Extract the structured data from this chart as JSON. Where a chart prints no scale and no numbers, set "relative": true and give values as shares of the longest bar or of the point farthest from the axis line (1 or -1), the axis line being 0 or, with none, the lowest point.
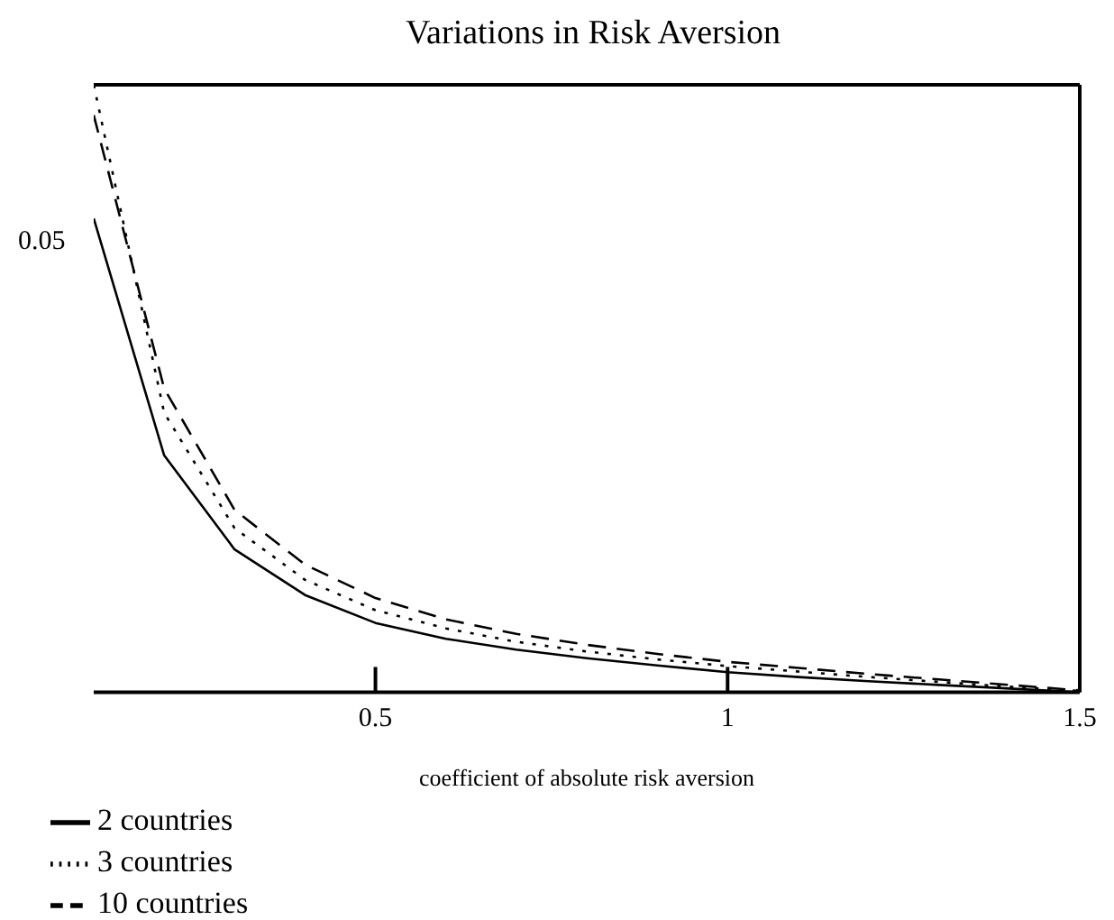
{
  "chart_data": {
    "type": "line",
    "title": "Variations in Risk Aversion",
    "xlabel": "coefficient of absolute risk aversion",
    "relative": true,
    "xlim": [
      0.1,
      1.5
    ],
    "xticks": [
      0.5,
      1,
      1.5
    ],
    "x": [
      0.1,
      0.2,
      0.3,
      0.4,
      0.5,
      0.6,
      0.7,
      0.8,
      0.9,
      1.0,
      1.1,
      1.2,
      1.3,
      1.4,
      1.5
    ],
    "legend": "bottom left",
    "grid": false,
    "annotations": [
      "0.05"
    ],
    "series": [
      {
        "name": "2 countries",
        "color": "#000000",
        "line_style": "solid",
        "values": [
          0.78,
          0.39,
          0.235,
          0.16,
          0.114,
          0.088,
          0.07,
          0.056,
          0.044,
          0.033,
          0.025,
          0.018,
          0.012,
          0.006,
          0
        ]
      },
      {
        "name": "3 countries",
        "color": "#000000",
        "line_style": "dotted",
        "values": [
          1.0,
          0.46,
          0.27,
          0.185,
          0.135,
          0.105,
          0.083,
          0.067,
          0.054,
          0.043,
          0.034,
          0.025,
          0.017,
          0.009,
          0.002
        ]
      },
      {
        "name": "10 countries",
        "color": "#000000",
        "line_style": "dashed",
        "values": [
          0.95,
          0.5,
          0.3,
          0.21,
          0.155,
          0.12,
          0.096,
          0.078,
          0.063,
          0.05,
          0.04,
          0.03,
          0.021,
          0.012,
          0.003
        ]
      }
    ]
  }
}
